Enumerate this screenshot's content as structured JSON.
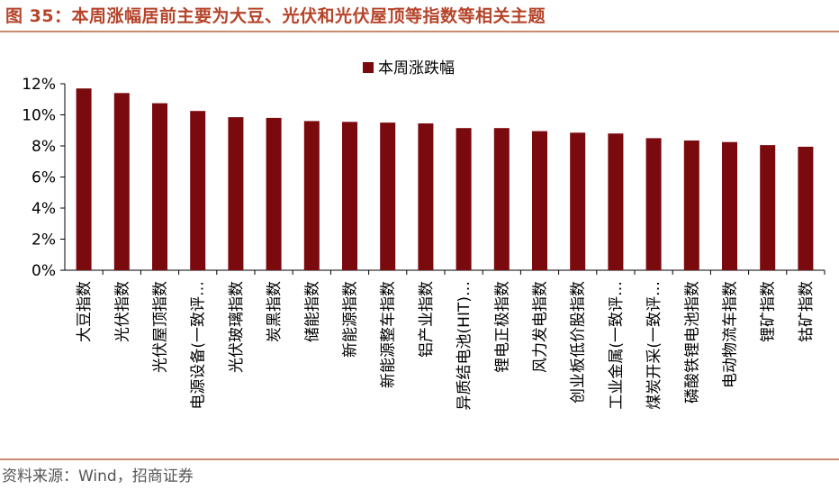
{
  "figure": {
    "title": "图 35：本周涨幅居前主要为大豆、光伏和光伏屋顶等指数等相关主题",
    "source": "资料来源：Wind，招商证券"
  },
  "colors": {
    "bar": "#7B0A0F",
    "title": "#B5442A",
    "rule": "#C98A70",
    "axis": "#000000"
  },
  "chart_data": {
    "type": "bar",
    "title": "",
    "xlabel": "",
    "ylabel": "",
    "ylim": [
      0,
      12
    ],
    "yticks": [
      "0%",
      "2%",
      "4%",
      "6%",
      "8%",
      "10%",
      "12%"
    ],
    "legend": {
      "position": "top-center",
      "entries": [
        "本周涨跌幅"
      ]
    },
    "grid": false,
    "categories": [
      "大豆指数",
      "光伏指数",
      "光伏屋顶指数",
      "电源设备(一致评…",
      "光伏玻璃指数",
      "炭黑指数",
      "储能指数",
      "新能源指数",
      "新能源整车指数",
      "铝产业指数",
      "异质结电池(HIT)…",
      "锂电正极指数",
      "风力发电指数",
      "创业板低价股指数",
      "工业金属(一致评…",
      "煤炭开采(一致评…",
      "磷酸铁锂电池指数",
      "电动物流车指数",
      "锂矿指数",
      "钴矿指数"
    ],
    "series": [
      {
        "name": "本周涨跌幅",
        "values": [
          11.7,
          11.4,
          10.75,
          10.25,
          9.85,
          9.8,
          9.6,
          9.55,
          9.5,
          9.45,
          9.15,
          9.15,
          8.95,
          8.85,
          8.8,
          8.5,
          8.35,
          8.25,
          8.05,
          7.95
        ]
      }
    ]
  }
}
